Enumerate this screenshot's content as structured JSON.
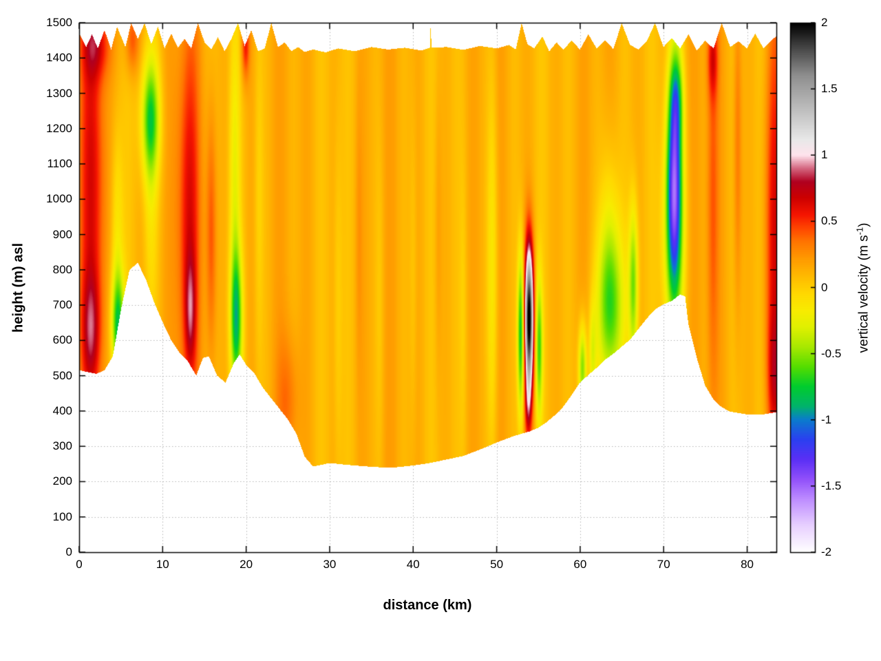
{
  "chart_data": {
    "type": "heatmap",
    "title": "",
    "xlabel": "distance (km)",
    "ylabel": "height (m) asl",
    "colorbar_label_prefix": "vertical velocity (m s",
    "colorbar_label_sup": "-1",
    "colorbar_label_suffix": ")",
    "x_range": [
      0,
      83.5
    ],
    "y_range": [
      0,
      1500
    ],
    "v_range": [
      -2,
      2
    ],
    "x_ticks": [
      0,
      10,
      20,
      30,
      40,
      50,
      60,
      70,
      80
    ],
    "y_ticks": [
      0,
      100,
      200,
      300,
      400,
      500,
      600,
      700,
      800,
      900,
      1000,
      1100,
      1200,
      1300,
      1400,
      1500
    ],
    "cb_ticks": [
      {
        "v": -2,
        "label": "-2"
      },
      {
        "v": -1.5,
        "label": "-1.5"
      },
      {
        "v": -1,
        "label": "-1"
      },
      {
        "v": -0.5,
        "label": "-0.5"
      },
      {
        "v": 0,
        "label": "0"
      },
      {
        "v": 0.5,
        "label": "0.5"
      },
      {
        "v": 1,
        "label": "1"
      },
      {
        "v": 1.5,
        "label": "1.5"
      },
      {
        "v": 2,
        "label": "2"
      }
    ],
    "grid": true,
    "grid_color": "#b3b3b3",
    "palette": [
      [
        -2.0,
        "#ffffff"
      ],
      [
        -1.8,
        "#e8d0ff"
      ],
      [
        -1.6,
        "#bd8cff"
      ],
      [
        -1.45,
        "#9150fa"
      ],
      [
        -1.3,
        "#5a2ff5"
      ],
      [
        -1.15,
        "#2b40f0"
      ],
      [
        -1.0,
        "#0a7ccc"
      ],
      [
        -0.9,
        "#00b36b"
      ],
      [
        -0.75,
        "#00cc2e"
      ],
      [
        -0.6,
        "#55dd00"
      ],
      [
        -0.45,
        "#a8e800"
      ],
      [
        -0.3,
        "#e0f000"
      ],
      [
        -0.18,
        "#f7ec00"
      ],
      [
        -0.05,
        "#ffd900"
      ],
      [
        0.08,
        "#ffbb00"
      ],
      [
        0.22,
        "#ff9900"
      ],
      [
        0.35,
        "#ff7300"
      ],
      [
        0.45,
        "#ff4400"
      ],
      [
        0.55,
        "#f51500"
      ],
      [
        0.68,
        "#cc0000"
      ],
      [
        0.8,
        "#b00020"
      ],
      [
        0.9,
        "#d4667f"
      ],
      [
        1.0,
        "#ffe3ec"
      ],
      [
        1.12,
        "#e8e8e8"
      ],
      [
        1.35,
        "#bdbdbd"
      ],
      [
        1.6,
        "#8f8f8f"
      ],
      [
        1.8,
        "#4a4a4a"
      ],
      [
        2.0,
        "#000000"
      ]
    ],
    "base": {
      "offset": 0.12,
      "a1": 0.05,
      "f1": 1.9,
      "a2": 0.04,
      "f2": 0.5,
      "p2": 2.0
    },
    "terrain": [
      [
        0,
        515
      ],
      [
        2,
        505
      ],
      [
        3,
        515
      ],
      [
        4,
        555
      ],
      [
        5,
        690
      ],
      [
        6,
        800
      ],
      [
        7,
        820
      ],
      [
        8,
        770
      ],
      [
        9,
        705
      ],
      [
        10,
        650
      ],
      [
        11,
        600
      ],
      [
        12,
        565
      ],
      [
        13,
        540
      ],
      [
        14,
        500
      ],
      [
        14.8,
        550
      ],
      [
        15.5,
        555
      ],
      [
        16.5,
        500
      ],
      [
        17.5,
        480
      ],
      [
        18.5,
        535
      ],
      [
        19.2,
        560
      ],
      [
        20,
        530
      ],
      [
        21,
        505
      ],
      [
        22,
        465
      ],
      [
        23,
        435
      ],
      [
        24,
        405
      ],
      [
        25,
        375
      ],
      [
        26,
        335
      ],
      [
        27,
        270
      ],
      [
        28,
        242
      ],
      [
        30,
        252
      ],
      [
        32,
        247
      ],
      [
        34,
        243
      ],
      [
        36,
        240
      ],
      [
        38,
        240
      ],
      [
        40,
        245
      ],
      [
        42,
        252
      ],
      [
        44,
        262
      ],
      [
        46,
        272
      ],
      [
        48,
        290
      ],
      [
        50,
        310
      ],
      [
        52,
        328
      ],
      [
        54,
        342
      ],
      [
        55,
        352
      ],
      [
        56,
        368
      ],
      [
        57,
        388
      ],
      [
        58,
        412
      ],
      [
        59,
        445
      ],
      [
        60,
        480
      ],
      [
        61,
        502
      ],
      [
        62,
        522
      ],
      [
        63,
        545
      ],
      [
        64,
        562
      ],
      [
        65,
        582
      ],
      [
        66,
        602
      ],
      [
        67,
        632
      ],
      [
        68,
        662
      ],
      [
        69,
        688
      ],
      [
        70,
        702
      ],
      [
        71,
        712
      ],
      [
        72,
        730
      ],
      [
        72.6,
        725
      ],
      [
        73,
        645
      ],
      [
        74,
        550
      ],
      [
        75,
        472
      ],
      [
        76,
        432
      ],
      [
        77,
        410
      ],
      [
        78,
        398
      ],
      [
        80,
        390
      ],
      [
        82,
        390
      ],
      [
        83.5,
        396
      ]
    ],
    "top_boundary": [
      [
        0,
        1470
      ],
      [
        0.8,
        1432
      ],
      [
        1.5,
        1468
      ],
      [
        2.2,
        1428
      ],
      [
        3,
        1480
      ],
      [
        3.8,
        1425
      ],
      [
        4.5,
        1490
      ],
      [
        5.5,
        1432
      ],
      [
        6.2,
        1500
      ],
      [
        7,
        1455
      ],
      [
        7.8,
        1500
      ],
      [
        8.6,
        1440
      ],
      [
        9.4,
        1490
      ],
      [
        10.2,
        1428
      ],
      [
        11,
        1470
      ],
      [
        11.8,
        1430
      ],
      [
        12.6,
        1455
      ],
      [
        13.4,
        1428
      ],
      [
        14.2,
        1500
      ],
      [
        15,
        1445
      ],
      [
        15.8,
        1425
      ],
      [
        16.6,
        1460
      ],
      [
        17.4,
        1420
      ],
      [
        18.2,
        1455
      ],
      [
        19,
        1500
      ],
      [
        19.8,
        1435
      ],
      [
        20.6,
        1480
      ],
      [
        21.4,
        1420
      ],
      [
        22.2,
        1428
      ],
      [
        23,
        1500
      ],
      [
        23.8,
        1432
      ],
      [
        24.6,
        1445
      ],
      [
        25.4,
        1420
      ],
      [
        26.2,
        1432
      ],
      [
        27,
        1418
      ],
      [
        28,
        1425
      ],
      [
        29.5,
        1417
      ],
      [
        31,
        1428
      ],
      [
        33,
        1420
      ],
      [
        35,
        1432
      ],
      [
        37,
        1425
      ],
      [
        39,
        1430
      ],
      [
        41,
        1422
      ],
      [
        42,
        1430
      ],
      [
        42.1,
        1500
      ],
      [
        42.2,
        1430
      ],
      [
        44,
        1432
      ],
      [
        46,
        1424
      ],
      [
        48,
        1435
      ],
      [
        50,
        1428
      ],
      [
        51.5,
        1438
      ],
      [
        52.3,
        1425
      ],
      [
        53,
        1500
      ],
      [
        53.7,
        1440
      ],
      [
        54.5,
        1428
      ],
      [
        55.5,
        1462
      ],
      [
        56.3,
        1420
      ],
      [
        57.2,
        1445
      ],
      [
        58,
        1425
      ],
      [
        59,
        1450
      ],
      [
        60,
        1425
      ],
      [
        61,
        1468
      ],
      [
        62,
        1428
      ],
      [
        63,
        1452
      ],
      [
        64,
        1426
      ],
      [
        65,
        1500
      ],
      [
        66,
        1438
      ],
      [
        67,
        1425
      ],
      [
        68,
        1448
      ],
      [
        69,
        1500
      ],
      [
        70,
        1432
      ],
      [
        71,
        1458
      ],
      [
        72,
        1428
      ],
      [
        73,
        1468
      ],
      [
        74,
        1422
      ],
      [
        75,
        1450
      ],
      [
        76,
        1428
      ],
      [
        77,
        1500
      ],
      [
        78,
        1432
      ],
      [
        79,
        1448
      ],
      [
        80,
        1428
      ],
      [
        81,
        1470
      ],
      [
        82,
        1428
      ],
      [
        83,
        1452
      ],
      [
        83.5,
        1462
      ]
    ],
    "features": [
      {
        "x": 1.6,
        "y": 1050,
        "sx": 1.1,
        "sy": 430,
        "amp": 0.5
      },
      {
        "x": 1.4,
        "y": 620,
        "sx": 0.8,
        "sy": 120,
        "amp": 0.45
      },
      {
        "x": 2.0,
        "y": 1440,
        "sx": 1.2,
        "sy": 70,
        "amp": 0.4
      },
      {
        "x": 6.3,
        "y": 1455,
        "sx": 0.6,
        "sy": 70,
        "amp": 0.35
      },
      {
        "x": 4.6,
        "y": 640,
        "sx": 0.55,
        "sy": 110,
        "amp": -0.85
      },
      {
        "x": 4.5,
        "y": 920,
        "sx": 0.5,
        "sy": 200,
        "amp": -0.25
      },
      {
        "x": 8.5,
        "y": 1230,
        "sx": 0.8,
        "sy": 120,
        "amp": -0.75
      },
      {
        "x": 8.5,
        "y": 1000,
        "sx": 0.6,
        "sy": 280,
        "amp": -0.2
      },
      {
        "x": 13.1,
        "y": 950,
        "sx": 0.9,
        "sy": 400,
        "amp": 0.5
      },
      {
        "x": 13.3,
        "y": 680,
        "sx": 0.45,
        "sy": 110,
        "amp": 0.4
      },
      {
        "x": 15.8,
        "y": 900,
        "sx": 0.45,
        "sy": 260,
        "amp": 0.35
      },
      {
        "x": 18.8,
        "y": 660,
        "sx": 0.5,
        "sy": 140,
        "amp": -0.85
      },
      {
        "x": 18.6,
        "y": 1050,
        "sx": 0.45,
        "sy": 300,
        "amp": -0.3
      },
      {
        "x": 19.9,
        "y": 1440,
        "sx": 0.35,
        "sy": 70,
        "amp": 0.45
      },
      {
        "x": 21.5,
        "y": 1000,
        "sx": 0.4,
        "sy": 400,
        "amp": -0.15
      },
      {
        "x": 25.0,
        "y": 430,
        "sx": 0.9,
        "sy": 130,
        "amp": 0.22
      },
      {
        "x": 31,
        "y": 700,
        "sx": 0.35,
        "sy": 350,
        "amp": -0.12
      },
      {
        "x": 33.5,
        "y": 900,
        "sx": 0.3,
        "sy": 300,
        "amp": 0.1
      },
      {
        "x": 36,
        "y": 700,
        "sx": 0.35,
        "sy": 350,
        "amp": -0.1
      },
      {
        "x": 40,
        "y": 800,
        "sx": 0.3,
        "sy": 350,
        "amp": -0.1
      },
      {
        "x": 43,
        "y": 900,
        "sx": 0.3,
        "sy": 300,
        "amp": 0.1
      },
      {
        "x": 46,
        "y": 700,
        "sx": 0.3,
        "sy": 300,
        "amp": -0.1
      },
      {
        "x": 49.5,
        "y": 800,
        "sx": 0.45,
        "sy": 400,
        "amp": -0.28
      },
      {
        "x": 53.9,
        "y": 660,
        "sx": 0.38,
        "sy": 150,
        "amp": 1.95
      },
      {
        "x": 53.8,
        "y": 410,
        "sx": 0.3,
        "sy": 70,
        "amp": 0.35
      },
      {
        "x": 52.9,
        "y": 620,
        "sx": 0.28,
        "sy": 160,
        "amp": -0.9
      },
      {
        "x": 55.1,
        "y": 580,
        "sx": 0.3,
        "sy": 140,
        "amp": -0.7
      },
      {
        "x": 60.3,
        "y": 520,
        "sx": 0.35,
        "sy": 90,
        "amp": -0.7
      },
      {
        "x": 61.5,
        "y": 560,
        "sx": 0.3,
        "sy": 100,
        "amp": -0.35
      },
      {
        "x": 63.6,
        "y": 690,
        "sx": 1.1,
        "sy": 170,
        "amp": -0.8
      },
      {
        "x": 63.5,
        "y": 950,
        "sx": 0.8,
        "sy": 200,
        "amp": -0.2
      },
      {
        "x": 66.4,
        "y": 760,
        "sx": 0.4,
        "sy": 160,
        "amp": -0.65
      },
      {
        "x": 71.3,
        "y": 1060,
        "sx": 0.65,
        "sy": 230,
        "amp": -1.3
      },
      {
        "x": 71.2,
        "y": 880,
        "sx": 0.9,
        "sy": 220,
        "amp": -0.45
      },
      {
        "x": 71.6,
        "y": 1290,
        "sx": 0.55,
        "sy": 90,
        "amp": -0.45
      },
      {
        "x": 75.9,
        "y": 1000,
        "sx": 0.5,
        "sy": 450,
        "amp": 0.28
      },
      {
        "x": 75.9,
        "y": 1400,
        "sx": 0.45,
        "sy": 80,
        "amp": 0.35
      },
      {
        "x": 78.9,
        "y": 1150,
        "sx": 0.35,
        "sy": 350,
        "amp": 0.25
      },
      {
        "x": 83.3,
        "y": 900,
        "sx": 0.8,
        "sy": 450,
        "amp": 0.5
      },
      {
        "x": 83.3,
        "y": 500,
        "sx": 0.6,
        "sy": 120,
        "amp": 0.3
      }
    ]
  }
}
